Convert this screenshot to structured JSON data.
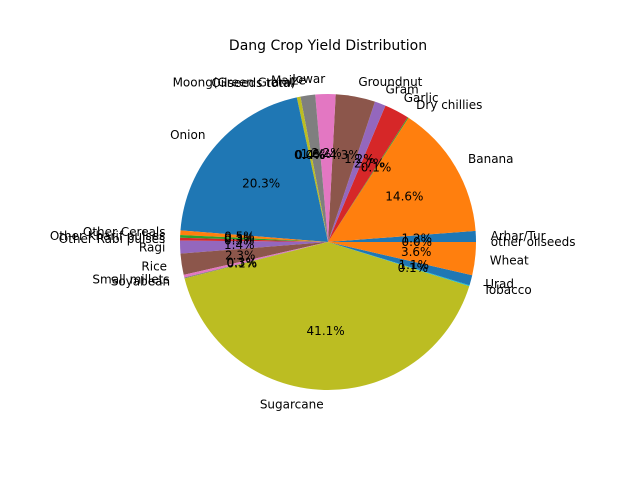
{
  "chart_data": {
    "type": "pie",
    "title": "Dang Crop Yield Distribution",
    "start_angle_deg": 0,
    "direction": "counterclockwise",
    "slices": [
      {
        "label": "Arhar/Tur",
        "value": 1.2,
        "pct_label": "1.2%",
        "color": "#1f77b4"
      },
      {
        "label": "Banana",
        "value": 14.6,
        "pct_label": "14.6%",
        "color": "#ff7f0e"
      },
      {
        "label": "Dry chillies",
        "value": 0.1,
        "pct_label": "0.1%",
        "color": "#2ca02c"
      },
      {
        "label": "Garlic",
        "value": 2.7,
        "pct_label": "2.7%",
        "color": "#d62728"
      },
      {
        "label": "Gram",
        "value": 1.2,
        "pct_label": "1.2%",
        "color": "#9467bd"
      },
      {
        "label": "Groundnut",
        "value": 4.3,
        "pct_label": "4.3%",
        "color": "#8c564b"
      },
      {
        "label": "Jowar",
        "value": 2.2,
        "pct_label": "2.2%",
        "color": "#e377c2"
      },
      {
        "label": "Maize",
        "value": 1.6,
        "pct_label": "1.6%",
        "color": "#7f7f7f"
      },
      {
        "label": "Moong(Green Gram)",
        "value": 0.4,
        "pct_label": "0.4%",
        "color": "#bcbd22"
      },
      {
        "label": "Oilseeds total",
        "value": 0.0,
        "pct_label": "0.0%",
        "color": "#17becf"
      },
      {
        "label": "Onion",
        "value": 20.3,
        "pct_label": "20.3%",
        "color": "#1f77b4"
      },
      {
        "label": "Other Cereals",
        "value": 0.5,
        "pct_label": "0.5%",
        "color": "#ff7f0e"
      },
      {
        "label": "Other Kharif pulses",
        "value": 0.3,
        "pct_label": "0.3%",
        "color": "#2ca02c"
      },
      {
        "label": "Other Rabi pulses",
        "value": 0.3,
        "pct_label": "0.3%",
        "color": "#d62728"
      },
      {
        "label": "Ragi",
        "value": 1.4,
        "pct_label": "1.4%",
        "color": "#9467bd"
      },
      {
        "label": "Rice",
        "value": 2.3,
        "pct_label": "2.3%",
        "color": "#8c564b"
      },
      {
        "label": "Small millets",
        "value": 0.3,
        "pct_label": "0.3%",
        "color": "#e377c2"
      },
      {
        "label": "Soyabean",
        "value": 0.1,
        "pct_label": "0.1%",
        "color": "#7f7f7f"
      },
      {
        "label": "Sugarcane",
        "value": 41.1,
        "pct_label": "41.1%",
        "color": "#bcbd22"
      },
      {
        "label": "Tobacco",
        "value": 0.1,
        "pct_label": "0.1%",
        "color": "#17becf"
      },
      {
        "label": "Urad",
        "value": 1.1,
        "pct_label": "1.1%",
        "color": "#1f77b4"
      },
      {
        "label": "Wheat",
        "value": 3.6,
        "pct_label": "3.6%",
        "color": "#ff7f0e"
      },
      {
        "label": "other oilseeds",
        "value": 0.0,
        "pct_label": "0.0%",
        "color": "#2ca02c"
      }
    ]
  }
}
